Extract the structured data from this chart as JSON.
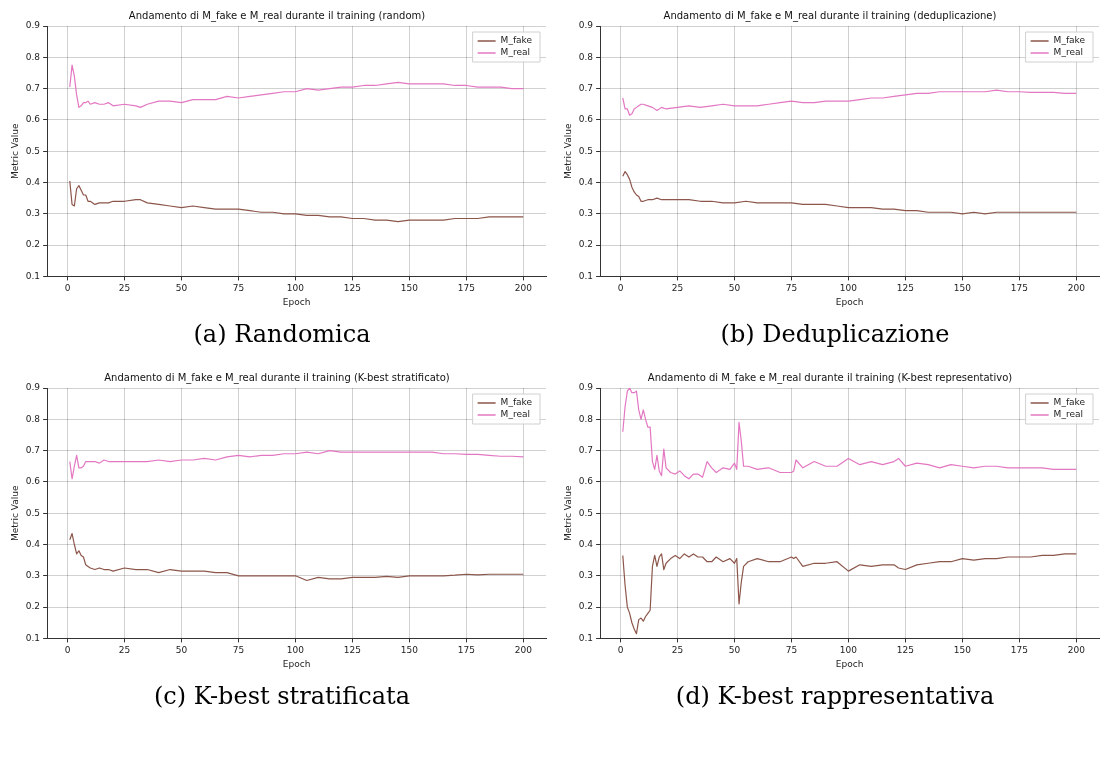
{
  "chart_data": [
    {
      "type": "line",
      "title": "Andamento di M_fake e M_real durante il training (random)",
      "xlabel": "Epoch",
      "ylabel": "Metric Value",
      "annotations": [
        "(a) Randomica"
      ],
      "xlim": [
        -8.95,
        209.95
      ],
      "xticks": [
        0,
        25,
        50,
        75,
        100,
        125,
        150,
        175,
        200
      ],
      "ylim": [
        0.1,
        0.9
      ],
      "yticks": [
        0.1,
        0.2,
        0.3,
        0.4,
        0.5,
        0.6,
        0.7,
        0.8,
        0.9
      ],
      "grid": true,
      "legend": "top right",
      "marker": "none",
      "line_style": "solid",
      "x": [
        1,
        2,
        3,
        4,
        5,
        6,
        7,
        8,
        9,
        10,
        12,
        14,
        16,
        18,
        20,
        25,
        30,
        32,
        35,
        40,
        45,
        50,
        55,
        60,
        65,
        70,
        75,
        80,
        85,
        90,
        95,
        100,
        105,
        110,
        115,
        120,
        125,
        130,
        135,
        140,
        145,
        150,
        155,
        160,
        165,
        170,
        175,
        180,
        185,
        190,
        195,
        200
      ],
      "series": [
        {
          "name": "M_fake",
          "color": "#8c564b",
          "values": [
            0.405,
            0.33,
            0.325,
            0.38,
            0.39,
            0.375,
            0.36,
            0.36,
            0.34,
            0.34,
            0.33,
            0.335,
            0.335,
            0.335,
            0.34,
            0.34,
            0.345,
            0.345,
            0.335,
            0.33,
            0.325,
            0.32,
            0.325,
            0.32,
            0.315,
            0.315,
            0.315,
            0.31,
            0.305,
            0.305,
            0.3,
            0.3,
            0.295,
            0.295,
            0.29,
            0.29,
            0.285,
            0.285,
            0.28,
            0.28,
            0.275,
            0.28,
            0.28,
            0.28,
            0.28,
            0.285,
            0.285,
            0.285,
            0.29,
            0.29,
            0.29,
            0.29
          ]
        },
        {
          "name": "M_real",
          "color": "#e377c2",
          "values": [
            0.705,
            0.775,
            0.74,
            0.68,
            0.64,
            0.645,
            0.655,
            0.655,
            0.66,
            0.65,
            0.655,
            0.65,
            0.65,
            0.655,
            0.645,
            0.65,
            0.645,
            0.64,
            0.65,
            0.66,
            0.66,
            0.655,
            0.665,
            0.665,
            0.665,
            0.675,
            0.67,
            0.675,
            0.68,
            0.685,
            0.69,
            0.69,
            0.7,
            0.695,
            0.7,
            0.705,
            0.705,
            0.71,
            0.71,
            0.715,
            0.72,
            0.715,
            0.715,
            0.715,
            0.715,
            0.71,
            0.71,
            0.705,
            0.705,
            0.705,
            0.7,
            0.7
          ]
        }
      ]
    },
    {
      "type": "line",
      "title": "Andamento di M_fake e M_real durante il training (deduplicazione)",
      "xlabel": "Epoch",
      "ylabel": "Metric Value",
      "annotations": [
        "(b) Deduplicazione"
      ],
      "xlim": [
        -8.95,
        209.95
      ],
      "xticks": [
        0,
        25,
        50,
        75,
        100,
        125,
        150,
        175,
        200
      ],
      "ylim": [
        0.1,
        0.9
      ],
      "yticks": [
        0.1,
        0.2,
        0.3,
        0.4,
        0.5,
        0.6,
        0.7,
        0.8,
        0.9
      ],
      "grid": true,
      "legend": "top right",
      "marker": "none",
      "line_style": "solid",
      "x": [
        1,
        2,
        3,
        4,
        5,
        6,
        7,
        8,
        9,
        10,
        12,
        14,
        16,
        18,
        20,
        25,
        30,
        35,
        40,
        45,
        50,
        55,
        60,
        65,
        70,
        75,
        80,
        85,
        90,
        95,
        100,
        105,
        110,
        115,
        120,
        125,
        130,
        135,
        140,
        145,
        150,
        155,
        160,
        165,
        170,
        175,
        180,
        185,
        190,
        195,
        200
      ],
      "series": [
        {
          "name": "M_fake",
          "color": "#8c564b",
          "values": [
            0.42,
            0.435,
            0.425,
            0.41,
            0.385,
            0.37,
            0.36,
            0.355,
            0.34,
            0.34,
            0.345,
            0.345,
            0.35,
            0.345,
            0.345,
            0.345,
            0.345,
            0.34,
            0.34,
            0.335,
            0.335,
            0.34,
            0.335,
            0.335,
            0.335,
            0.335,
            0.33,
            0.33,
            0.33,
            0.325,
            0.32,
            0.32,
            0.32,
            0.315,
            0.315,
            0.31,
            0.31,
            0.305,
            0.305,
            0.305,
            0.3,
            0.305,
            0.3,
            0.305,
            0.305,
            0.305,
            0.305,
            0.305,
            0.305,
            0.305,
            0.305
          ]
        },
        {
          "name": "M_real",
          "color": "#e377c2",
          "values": [
            0.67,
            0.635,
            0.635,
            0.615,
            0.62,
            0.635,
            0.64,
            0.645,
            0.65,
            0.65,
            0.645,
            0.64,
            0.63,
            0.64,
            0.635,
            0.64,
            0.645,
            0.64,
            0.645,
            0.65,
            0.645,
            0.645,
            0.645,
            0.65,
            0.655,
            0.66,
            0.655,
            0.655,
            0.66,
            0.66,
            0.66,
            0.665,
            0.67,
            0.67,
            0.675,
            0.68,
            0.685,
            0.685,
            0.69,
            0.69,
            0.69,
            0.69,
            0.69,
            0.695,
            0.69,
            0.69,
            0.688,
            0.688,
            0.688,
            0.685,
            0.685
          ]
        }
      ]
    },
    {
      "type": "line",
      "title": "Andamento di M_fake e M_real durante il training (K-best stratificato)",
      "xlabel": "Epoch",
      "ylabel": "Metric Value",
      "annotations": [
        "(c) K-best stratificata"
      ],
      "xlim": [
        -8.95,
        209.95
      ],
      "xticks": [
        0,
        25,
        50,
        75,
        100,
        125,
        150,
        175,
        200
      ],
      "ylim": [
        0.1,
        0.9
      ],
      "yticks": [
        0.1,
        0.2,
        0.3,
        0.4,
        0.5,
        0.6,
        0.7,
        0.8,
        0.9
      ],
      "grid": true,
      "legend": "top right",
      "marker": "none",
      "line_style": "solid",
      "x": [
        1,
        2,
        3,
        4,
        5,
        6,
        7,
        8,
        9,
        10,
        12,
        14,
        16,
        18,
        20,
        25,
        30,
        35,
        40,
        45,
        50,
        55,
        60,
        65,
        70,
        75,
        80,
        85,
        90,
        95,
        100,
        105,
        110,
        115,
        120,
        125,
        130,
        135,
        140,
        145,
        150,
        155,
        160,
        165,
        170,
        175,
        180,
        185,
        190,
        195,
        200
      ],
      "series": [
        {
          "name": "M_fake",
          "color": "#8c564b",
          "values": [
            0.415,
            0.435,
            0.4,
            0.37,
            0.38,
            0.365,
            0.36,
            0.335,
            0.33,
            0.325,
            0.32,
            0.325,
            0.32,
            0.32,
            0.315,
            0.325,
            0.32,
            0.32,
            0.31,
            0.32,
            0.315,
            0.315,
            0.315,
            0.31,
            0.31,
            0.3,
            0.3,
            0.3,
            0.3,
            0.3,
            0.3,
            0.285,
            0.295,
            0.29,
            0.29,
            0.295,
            0.295,
            0.295,
            0.298,
            0.295,
            0.3,
            0.3,
            0.3,
            0.3,
            0.302,
            0.305,
            0.303,
            0.305,
            0.305,
            0.305,
            0.305
          ]
        },
        {
          "name": "M_real",
          "color": "#e377c2",
          "values": [
            0.665,
            0.61,
            0.65,
            0.685,
            0.645,
            0.645,
            0.65,
            0.665,
            0.665,
            0.665,
            0.665,
            0.66,
            0.67,
            0.665,
            0.665,
            0.665,
            0.665,
            0.665,
            0.67,
            0.665,
            0.67,
            0.67,
            0.675,
            0.67,
            0.68,
            0.685,
            0.68,
            0.685,
            0.685,
            0.69,
            0.69,
            0.695,
            0.69,
            0.7,
            0.695,
            0.695,
            0.695,
            0.695,
            0.695,
            0.695,
            0.695,
            0.695,
            0.695,
            0.69,
            0.69,
            0.688,
            0.688,
            0.685,
            0.682,
            0.682,
            0.68
          ]
        }
      ]
    },
    {
      "type": "line",
      "title": "Andamento di M_fake e M_real durante il training (K-best representativo)",
      "xlabel": "Epoch",
      "ylabel": "Metric Value",
      "annotations": [
        "(d) K-best rappresentativa"
      ],
      "xlim": [
        -8.95,
        209.95
      ],
      "xticks": [
        0,
        25,
        50,
        75,
        100,
        125,
        150,
        175,
        200
      ],
      "ylim": [
        0.1,
        0.9
      ],
      "yticks": [
        0.1,
        0.2,
        0.3,
        0.4,
        0.5,
        0.6,
        0.7,
        0.8,
        0.9
      ],
      "grid": true,
      "legend": "top right",
      "marker": "none",
      "line_style": "solid",
      "x": [
        1,
        2,
        3,
        4,
        5,
        6,
        7,
        8,
        9,
        10,
        11,
        12,
        13,
        14,
        15,
        16,
        17,
        18,
        19,
        20,
        22,
        24,
        26,
        28,
        30,
        32,
        34,
        36,
        38,
        40,
        42,
        45,
        48,
        50,
        51,
        52,
        53,
        54,
        56,
        60,
        65,
        70,
        75,
        76,
        77,
        80,
        85,
        90,
        95,
        100,
        105,
        110,
        115,
        120,
        122,
        125,
        130,
        135,
        140,
        145,
        150,
        155,
        160,
        165,
        170,
        175,
        180,
        185,
        190,
        195,
        200
      ],
      "series": [
        {
          "name": "M_fake",
          "color": "#8c564b",
          "values": [
            0.365,
            0.27,
            0.2,
            0.18,
            0.15,
            0.13,
            0.115,
            0.16,
            0.165,
            0.155,
            0.17,
            0.18,
            0.19,
            0.33,
            0.365,
            0.33,
            0.36,
            0.37,
            0.32,
            0.34,
            0.355,
            0.365,
            0.355,
            0.37,
            0.36,
            0.37,
            0.36,
            0.36,
            0.345,
            0.345,
            0.36,
            0.345,
            0.355,
            0.34,
            0.355,
            0.21,
            0.28,
            0.33,
            0.345,
            0.355,
            0.345,
            0.345,
            0.36,
            0.355,
            0.36,
            0.33,
            0.34,
            0.34,
            0.345,
            0.315,
            0.335,
            0.33,
            0.335,
            0.335,
            0.325,
            0.32,
            0.335,
            0.34,
            0.345,
            0.345,
            0.355,
            0.35,
            0.355,
            0.355,
            0.36,
            0.36,
            0.36,
            0.365,
            0.365,
            0.37,
            0.37
          ]
        },
        {
          "name": "M_real",
          "color": "#e377c2",
          "values": [
            0.76,
            0.84,
            0.89,
            0.9,
            0.885,
            0.885,
            0.89,
            0.83,
            0.8,
            0.83,
            0.8,
            0.775,
            0.775,
            0.665,
            0.64,
            0.685,
            0.635,
            0.62,
            0.705,
            0.645,
            0.63,
            0.625,
            0.635,
            0.62,
            0.61,
            0.625,
            0.625,
            0.615,
            0.665,
            0.645,
            0.63,
            0.645,
            0.64,
            0.66,
            0.64,
            0.79,
            0.73,
            0.65,
            0.65,
            0.64,
            0.645,
            0.63,
            0.63,
            0.635,
            0.67,
            0.645,
            0.665,
            0.65,
            0.65,
            0.675,
            0.655,
            0.665,
            0.655,
            0.665,
            0.675,
            0.65,
            0.66,
            0.655,
            0.645,
            0.655,
            0.65,
            0.645,
            0.65,
            0.65,
            0.645,
            0.645,
            0.645,
            0.645,
            0.64,
            0.64,
            0.64
          ]
        }
      ]
    }
  ]
}
